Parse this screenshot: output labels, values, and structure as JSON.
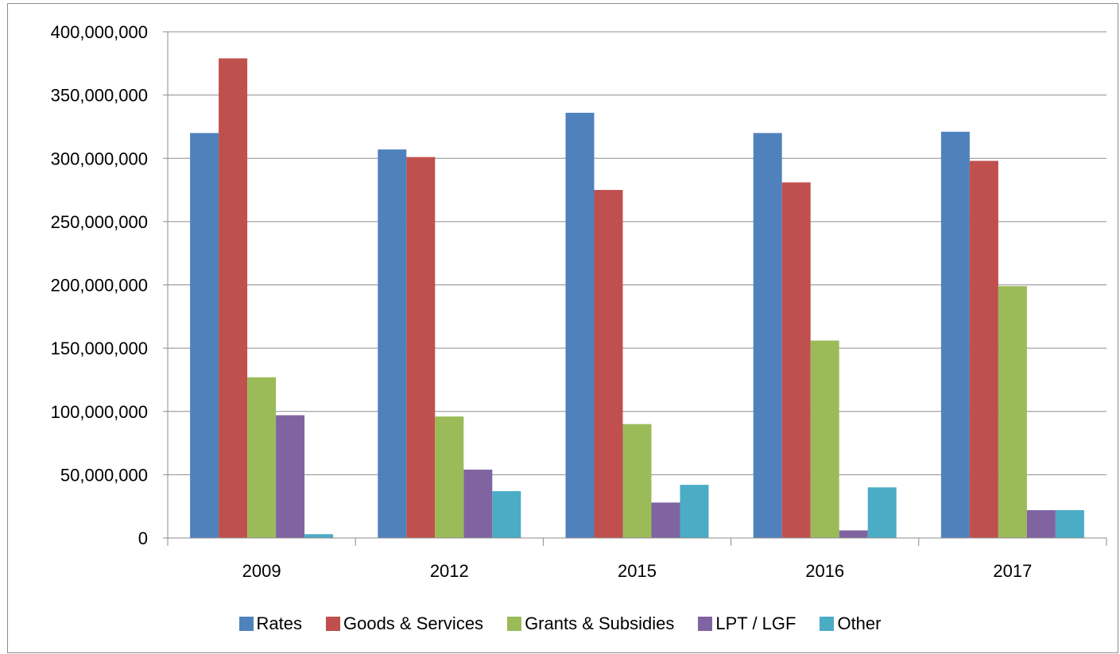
{
  "chart_data": {
    "type": "bar",
    "categories": [
      "2009",
      "2012",
      "2015",
      "2016",
      "2017"
    ],
    "series": [
      {
        "name": "Rates",
        "color": "#4F81BD",
        "values": [
          320000000,
          307000000,
          336000000,
          320000000,
          321000000
        ]
      },
      {
        "name": "Goods & Services",
        "color": "#C0504D",
        "values": [
          379000000,
          301000000,
          275000000,
          281000000,
          298000000
        ]
      },
      {
        "name": "Grants & Subsidies",
        "color": "#9BBB59",
        "values": [
          127000000,
          96000000,
          90000000,
          156000000,
          199000000
        ]
      },
      {
        "name": "LPT / LGF",
        "color": "#8064A2",
        "values": [
          97000000,
          54000000,
          28000000,
          6000000,
          22000000
        ]
      },
      {
        "name": "Other",
        "color": "#4BACC6",
        "values": [
          3000000,
          37000000,
          42000000,
          40000000,
          22000000
        ]
      }
    ],
    "yticks": [
      "0",
      "50,000,000",
      "100,000,000",
      "150,000,000",
      "200,000,000",
      "250,000,000",
      "300,000,000",
      "350,000,000",
      "400,000,000"
    ],
    "ylim": [
      0,
      400000000
    ],
    "grid": true,
    "legend_position": "bottom"
  }
}
